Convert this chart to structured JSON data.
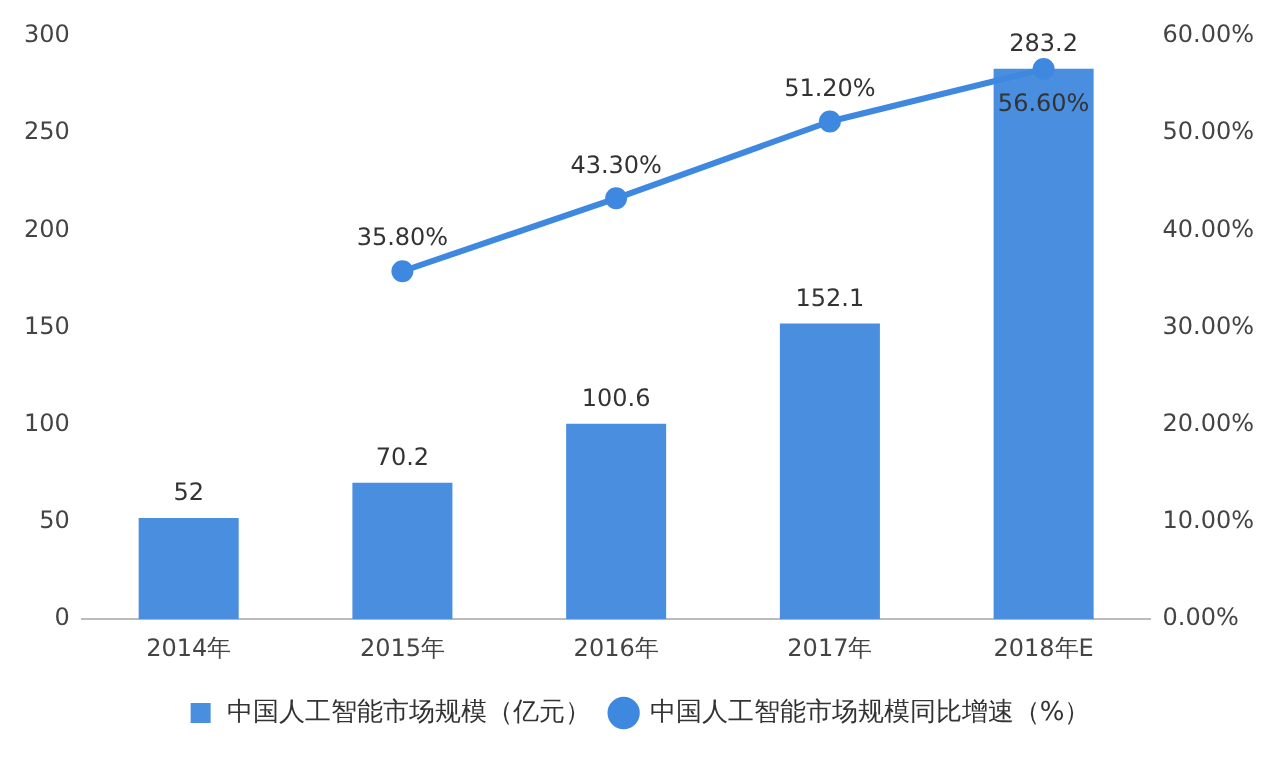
{
  "chart_data": {
    "type": "bar",
    "categories": [
      "2014年",
      "2015年",
      "2016年",
      "2017年",
      "2018年E"
    ],
    "series": [
      {
        "name": "中国人工智能市场规模（亿元）",
        "color": "#4a8ee0",
        "values": [
          52,
          70.2,
          100.6,
          152.1,
          283.2
        ],
        "value_labels": [
          "52",
          "70.2",
          "100.6",
          "152.1",
          "283.2"
        ]
      },
      {
        "name": "中国人工智能市场规模同比增速（%）",
        "type": "line",
        "axis": "y2",
        "color": "#3f88e0",
        "values": [
          null,
          35.8,
          43.3,
          51.2,
          56.6
        ],
        "value_labels": [
          null,
          "35.80%",
          "43.30%",
          "51.20%",
          "56.60%"
        ]
      }
    ],
    "ylim": [
      0,
      300
    ],
    "yticks": [
      0,
      50,
      100,
      150,
      200,
      250,
      300
    ],
    "y2lim": [
      0,
      60
    ],
    "y2ticks": [
      {
        "value": 0,
        "label": "0.00%"
      },
      {
        "value": 10,
        "label": "10.00%"
      },
      {
        "value": 20,
        "label": "20.00%"
      },
      {
        "value": 30,
        "label": "30.00%"
      },
      {
        "value": 40,
        "label": "40.00%"
      },
      {
        "value": 50,
        "label": "50.00%"
      },
      {
        "value": 60,
        "label": "60.00%"
      }
    ],
    "grid": false,
    "legend": "bottom",
    "marker": "circle",
    "line_style": "solid"
  }
}
